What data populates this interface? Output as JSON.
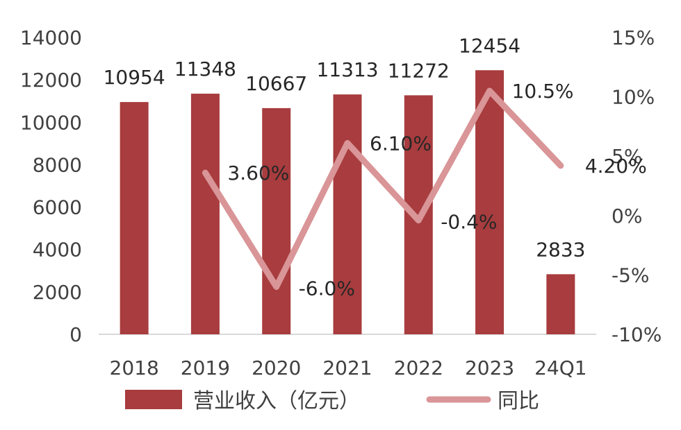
{
  "chart_data": {
    "type": "bar",
    "categories": [
      "2018",
      "2019",
      "2020",
      "2021",
      "2022",
      "2023",
      "24Q1"
    ],
    "series": [
      {
        "name": "营业收入（亿元）",
        "type": "bar",
        "axis": "left",
        "values": [
          10954,
          11348,
          10667,
          11313,
          11272,
          12454,
          2833
        ],
        "labels": [
          "10954",
          "11348",
          "10667",
          "11313",
          "11272",
          "12454",
          "2833"
        ]
      },
      {
        "name": "同比",
        "type": "line",
        "axis": "right",
        "values": [
          null,
          3.6,
          -6.0,
          6.1,
          -0.4,
          10.5,
          4.2
        ],
        "labels": [
          "",
          "3.60%",
          "-6.0%",
          "6.10%",
          "-0.4%",
          "10.5%",
          "4.20%"
        ]
      }
    ],
    "y_left": {
      "min": 0,
      "max": 14000,
      "ticks": [
        "0",
        "2000",
        "4000",
        "6000",
        "8000",
        "10000",
        "12000",
        "14000"
      ]
    },
    "y_right": {
      "min": -10,
      "max": 15,
      "ticks": [
        "-10%",
        "-5%",
        "0%",
        "5%",
        "10%",
        "15%"
      ]
    },
    "legend_position": "bottom",
    "grid": false,
    "colors": {
      "bar": "#a83c3e",
      "line": "#d99597",
      "axis": "#d9d9d9"
    }
  }
}
